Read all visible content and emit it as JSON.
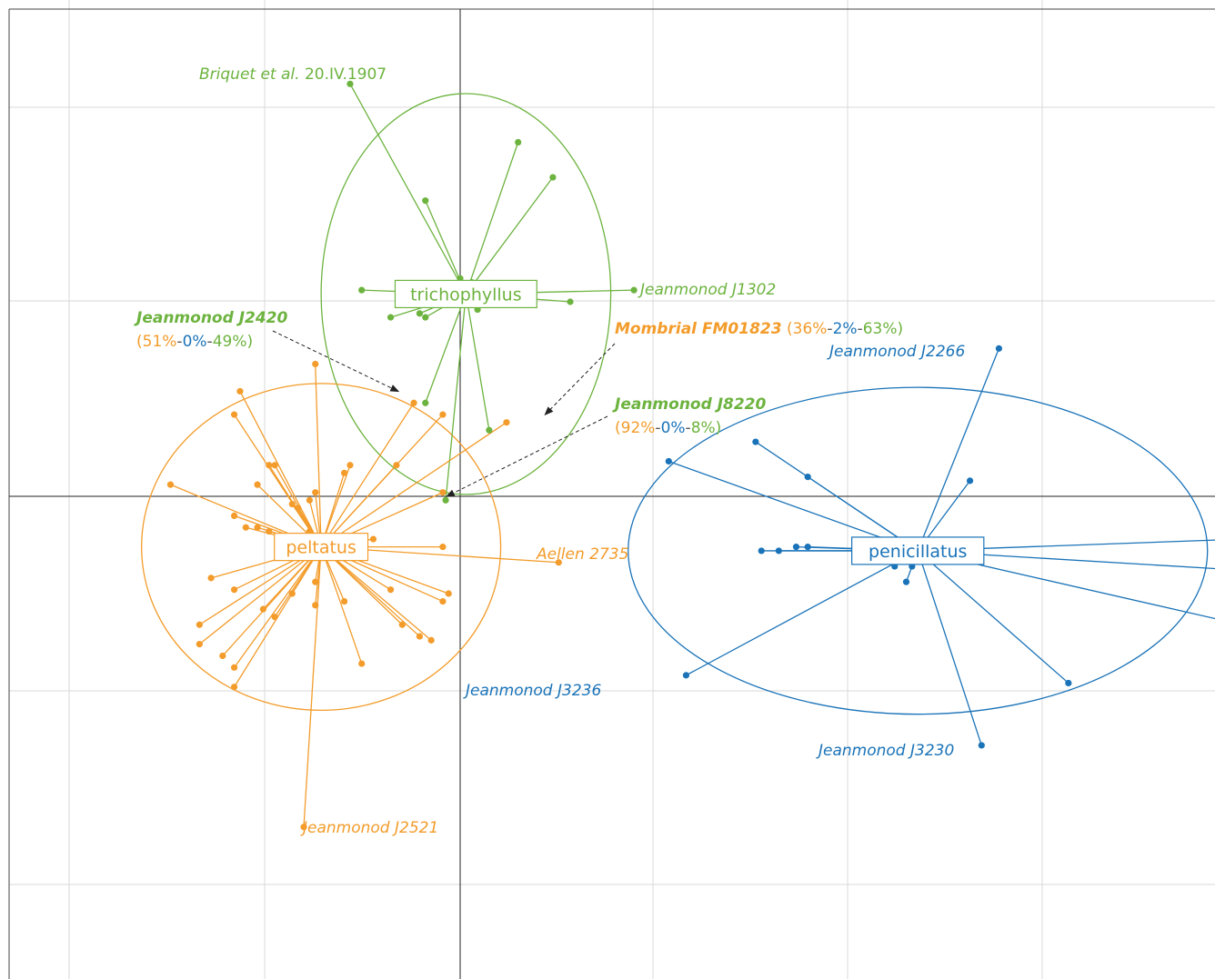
{
  "chart_data": {
    "type": "scatter",
    "title": "",
    "xlabel": "",
    "ylabel": "",
    "grid": true,
    "xlim": [
      -0.82,
      1.35
    ],
    "ylim": [
      -0.85,
      1.45
    ],
    "colors": {
      "peltatus": "#f39c2b",
      "trichophyllus": "#6db33f",
      "penicillatus": "#1a73b8"
    },
    "groups": [
      {
        "name": "trichophyllus",
        "label": "trichophyllus",
        "color": "#6db33f",
        "centroid": [
          0.01,
          0.52
        ],
        "ellipse": {
          "rx": 0.25,
          "ry": 0.515
        },
        "points": [
          [
            -0.19,
            1.06
          ],
          [
            0.1,
            0.91
          ],
          [
            0.16,
            0.82
          ],
          [
            -0.06,
            0.76
          ],
          [
            -0.17,
            0.53
          ],
          [
            0.3,
            0.53
          ],
          [
            -0.12,
            0.46
          ],
          [
            -0.07,
            0.47
          ],
          [
            -0.06,
            0.46
          ],
          [
            0.03,
            0.48
          ],
          [
            0.19,
            0.5
          ],
          [
            0.0,
            0.55
          ],
          [
            0.0,
            0.56
          ],
          [
            0.02,
            0.55
          ],
          [
            -0.06,
            0.24
          ],
          [
            0.05,
            0.17
          ],
          [
            -0.025,
            -0.01
          ]
        ]
      },
      {
        "name": "peltatus",
        "label": "peltatus",
        "color": "#f39c2b",
        "centroid": [
          -0.24,
          -0.13
        ],
        "ellipse": {
          "rx": 0.31,
          "ry": 0.42
        },
        "points": [
          [
            -0.25,
            0.34
          ],
          [
            -0.38,
            0.27
          ],
          [
            -0.39,
            0.21
          ],
          [
            -0.08,
            0.24
          ],
          [
            -0.03,
            0.21
          ],
          [
            0.08,
            0.19
          ],
          [
            -0.33,
            0.08
          ],
          [
            -0.32,
            0.08
          ],
          [
            -0.19,
            0.08
          ],
          [
            -0.11,
            0.08
          ],
          [
            -0.2,
            0.06
          ],
          [
            -0.5,
            0.03
          ],
          [
            -0.35,
            0.03
          ],
          [
            -0.25,
            0.01
          ],
          [
            -0.03,
            0.01
          ],
          [
            -0.26,
            -0.01
          ],
          [
            -0.29,
            -0.02
          ],
          [
            -0.28,
            -0.03
          ],
          [
            -0.39,
            -0.05
          ],
          [
            -0.37,
            -0.08
          ],
          [
            -0.35,
            -0.08
          ],
          [
            -0.33,
            -0.09
          ],
          [
            -0.26,
            -0.09
          ],
          [
            -0.18,
            -0.11
          ],
          [
            -0.15,
            -0.11
          ],
          [
            -0.03,
            -0.13
          ],
          [
            -0.43,
            -0.21
          ],
          [
            -0.39,
            -0.24
          ],
          [
            -0.12,
            -0.24
          ],
          [
            -0.25,
            -0.22
          ],
          [
            -0.25,
            -0.28
          ],
          [
            -0.29,
            -0.25
          ],
          [
            -0.2,
            -0.27
          ],
          [
            -0.34,
            -0.29
          ],
          [
            -0.02,
            -0.25
          ],
          [
            -0.03,
            -0.27
          ],
          [
            -0.45,
            -0.33
          ],
          [
            -0.32,
            -0.31
          ],
          [
            -0.1,
            -0.33
          ],
          [
            -0.07,
            -0.36
          ],
          [
            -0.05,
            -0.37
          ],
          [
            -0.45,
            -0.38
          ],
          [
            -0.41,
            -0.41
          ],
          [
            -0.39,
            -0.44
          ],
          [
            -0.17,
            -0.43
          ],
          [
            -0.39,
            -0.49
          ],
          [
            -0.27,
            -0.85
          ],
          [
            0.17,
            -0.17
          ]
        ]
      },
      {
        "name": "penicillatus",
        "label": "penicillatus",
        "color": "#1a73b8",
        "centroid": [
          0.79,
          -0.14
        ],
        "ellipse": {
          "rx": 0.5,
          "ry": 0.42
        },
        "points": [
          [
            0.93,
            0.38
          ],
          [
            0.51,
            0.14
          ],
          [
            0.6,
            0.05
          ],
          [
            0.36,
            0.09
          ],
          [
            0.88,
            0.04
          ],
          [
            1.35,
            -0.11
          ],
          [
            1.35,
            -0.19
          ],
          [
            1.32,
            -0.32
          ],
          [
            1.05,
            -0.48
          ],
          [
            0.6,
            -0.13
          ],
          [
            0.58,
            -0.13
          ],
          [
            0.52,
            -0.14
          ],
          [
            0.55,
            -0.14
          ],
          [
            0.75,
            -0.18
          ],
          [
            0.78,
            -0.18
          ],
          [
            0.77,
            -0.22
          ],
          [
            0.39,
            -0.46
          ],
          [
            0.9,
            -0.64
          ]
        ]
      }
    ],
    "annotations": [
      {
        "id": "briquet",
        "group": "trichophyllus",
        "point": [
          -0.19,
          1.06
        ],
        "parts": [
          {
            "t": "Briquet et al.",
            "c": "#6db33f",
            "s": "it"
          },
          {
            "t": " 20.IV.1907",
            "c": "#6db33f",
            "s": "normal"
          }
        ]
      },
      {
        "id": "j1302",
        "group": "trichophyllus",
        "point": [
          0.45,
          0.53
        ],
        "parts": [
          {
            "t": "Jeanmonod J1302",
            "c": "#6db33f",
            "s": "it"
          }
        ]
      },
      {
        "id": "j2266",
        "group": "penicillatus",
        "point": [
          0.93,
          0.38
        ],
        "parts": [
          {
            "t": "Jeanmonod J2266",
            "c": "#1a73b8",
            "s": "it"
          }
        ]
      },
      {
        "id": "aellen",
        "group": "peltatus",
        "point": [
          0.17,
          -0.17
        ],
        "parts": [
          {
            "t": "Aellen 2735",
            "c": "#f39c2b",
            "s": "it"
          }
        ]
      },
      {
        "id": "j3236",
        "group": "penicillatus",
        "point": [
          0.39,
          -0.46
        ],
        "parts": [
          {
            "t": "Jeanmonod J3236",
            "c": "#1a73b8",
            "s": "it"
          }
        ]
      },
      {
        "id": "j3230",
        "group": "penicillatus",
        "point": [
          0.9,
          -0.64
        ],
        "parts": [
          {
            "t": "Jeanmonod J3230",
            "c": "#1a73b8",
            "s": "it"
          }
        ]
      },
      {
        "id": "j2521",
        "group": "peltatus",
        "point": [
          -0.42,
          -0.85
        ],
        "parts": [
          {
            "t": "Jeanmonod J2521",
            "c": "#f39c2b",
            "s": "it"
          }
        ]
      }
    ],
    "callouts": [
      {
        "id": "j2420",
        "target": [
          -0.1,
          0.26
        ],
        "line1": [
          {
            "t": "Jeanmonod J2420",
            "c": "#6db33f",
            "s": "b"
          }
        ],
        "line2": [
          {
            "t": "(51%",
            "c": "#f39c2b"
          },
          {
            "t": "-",
            "c": "#555555"
          },
          {
            "t": "0%",
            "c": "#1a73b8"
          },
          {
            "t": "-",
            "c": "#555555"
          },
          {
            "t": "49%)",
            "c": "#6db33f"
          }
        ]
      },
      {
        "id": "fm01823",
        "target": [
          0.14,
          0.2
        ],
        "line1": [
          {
            "t": "Mombrial FM01823",
            "c": "#f39c2b",
            "s": "b"
          },
          {
            "t": " (36%",
            "c": "#f39c2b",
            "s": "normal"
          },
          {
            "t": "-",
            "c": "#555555",
            "s": "normal"
          },
          {
            "t": "2%",
            "c": "#1a73b8",
            "s": "normal"
          },
          {
            "t": "-",
            "c": "#555555",
            "s": "normal"
          },
          {
            "t": "63%)",
            "c": "#6db33f",
            "s": "normal"
          }
        ],
        "line2": []
      },
      {
        "id": "j8220",
        "target": [
          -0.03,
          -0.01
        ],
        "line1": [
          {
            "t": "Jeanmonod J8220",
            "c": "#6db33f",
            "s": "b"
          }
        ],
        "line2": [
          {
            "t": "(92%",
            "c": "#f39c2b"
          },
          {
            "t": "-",
            "c": "#555555"
          },
          {
            "t": "0%",
            "c": "#1a73b8"
          },
          {
            "t": "-",
            "c": "#555555"
          },
          {
            "t": "8%)",
            "c": "#6db33f"
          }
        ]
      }
    ]
  }
}
